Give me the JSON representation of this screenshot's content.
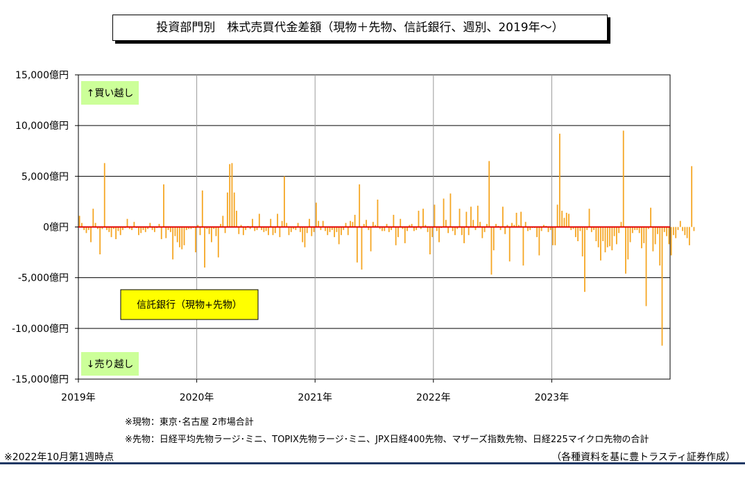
{
  "title": "投資部門別　株式売買代金差額（現物＋先物、信託銀行、週別、2019年～）",
  "notes": {
    "note1": "※現物：東京･名古屋 2市場合計",
    "note2": "※先物：日経平均先物ラージ･ミニ、TOPIX先物ラージ･ミニ、JPX日経400先物、マザーズ指数先物、日経225マイクロ先物の合計",
    "note3": "※2022年10月第1週時点",
    "source": "（各種資料を基に豊トラスティ証券作成）"
  },
  "chart_data": {
    "type": "bar",
    "title": "投資部門別　株式売買代金差額（現物＋先物、信託銀行、週別、2019年～）",
    "xlabel": "",
    "ylabel": "",
    "ylim": [
      -15000,
      15000
    ],
    "yticks": [
      15000,
      10000,
      5000,
      0,
      -5000,
      -10000,
      -15000
    ],
    "ytick_labels": [
      "15,000億円",
      "10,000億円",
      "5,000億円",
      "0億円",
      "-5,000億円",
      "-10,000億円",
      "-15,000億円"
    ],
    "x_tick_labels": [
      "2019年",
      "2020年",
      "2021年",
      "2022年",
      "2023年"
    ],
    "x_tick_positions_years": [
      2019,
      2020,
      2021,
      2022,
      2023
    ],
    "x_range_years": [
      2019,
      2024
    ],
    "grid": true,
    "bar_color": "#f5a623",
    "zero_line_color": "#e00000",
    "annotations": [
      {
        "text": "↑買い越し",
        "bg": "#ccff99",
        "anchor": "top-left"
      },
      {
        "text": "↓売り越し",
        "bg": "#ccff99",
        "anchor": "bottom-left"
      },
      {
        "text": "信託銀行（現物+先物）",
        "bg": "#ffff00",
        "anchor": "middle-left"
      }
    ],
    "series": [
      {
        "start_year": 2019.0,
        "weeks_per_year": 52,
        "values": [
          1100,
          400,
          -300,
          -600,
          -300,
          -1500,
          1800,
          400,
          -200,
          -2700,
          -200,
          6300,
          -300,
          -500,
          -1000,
          -200,
          -1200,
          -400,
          -800,
          -300,
          -100,
          800,
          -200,
          -300,
          500,
          -100,
          -800,
          -600,
          -300,
          -500,
          -200,
          400,
          -300,
          -500,
          -100,
          300,
          -1200,
          4200,
          -1100,
          -300,
          -500,
          -3200,
          -900,
          -1500,
          -2000,
          -2200,
          -1800,
          -300,
          -200,
          -200,
          -100,
          -2500,
          200,
          -800,
          3600,
          -4000,
          -200,
          -700,
          -1500,
          -200,
          -900,
          -3000,
          300,
          1100,
          -600,
          3400,
          6200,
          6300,
          3400,
          1600,
          -700,
          200,
          -800,
          -300,
          100,
          -200,
          800,
          -400,
          -300,
          1300,
          -300,
          -500,
          -400,
          -800,
          800,
          -800,
          -600,
          1300,
          -1000,
          600,
          5000,
          400,
          -800,
          -500,
          -200,
          -300,
          400,
          -500,
          -1500,
          -2000,
          -600,
          800,
          -900,
          -500,
          2400,
          600,
          -300,
          600,
          -400,
          -800,
          -500,
          -300,
          -1000,
          -500,
          -1700,
          -800,
          -300,
          400,
          -800,
          600,
          500,
          1200,
          -3500,
          4200,
          -4200,
          300,
          700,
          -300,
          -2400,
          500,
          200,
          2700,
          -200,
          -400,
          -400,
          300,
          -500,
          -300,
          1200,
          -1800,
          -1000,
          800,
          -200,
          -1600,
          -400,
          200,
          300,
          -400,
          -300,
          1600,
          -200,
          1800,
          200,
          -500,
          -2700,
          -1000,
          2200,
          -400,
          -1500,
          -100,
          2800,
          700,
          -600,
          3300,
          -400,
          -800,
          -200,
          1800,
          -800,
          -1600,
          1500,
          -800,
          2000,
          700,
          -300,
          2100,
          500,
          -1100,
          -500,
          300,
          6500,
          -4700,
          -2300,
          300,
          100,
          -300,
          2000,
          -700,
          200,
          -3400,
          400,
          200,
          1400,
          200,
          1500,
          -3800,
          500,
          -400,
          -300,
          -100,
          -100,
          -1000,
          -2800,
          -400,
          200,
          100,
          -500,
          -300,
          -1800,
          -1800,
          2200,
          9200,
          1600,
          900,
          1400,
          1300,
          -300,
          -200,
          -1000,
          -1400,
          -400,
          -2900,
          -6400,
          -300,
          1800,
          -500,
          -300,
          -1400,
          -2000,
          -3300,
          -1400,
          -2500,
          -2000,
          -1900,
          -2300,
          -900,
          -1700,
          -600,
          500,
          9500,
          -4600,
          -3200,
          -1500,
          -600,
          -300,
          -300,
          -600,
          -2100,
          -1600,
          -7800,
          -200,
          1900,
          -2400,
          -1700,
          -700,
          -3800,
          -11700,
          -500,
          -900,
          -1700,
          -2800,
          -800,
          -1100,
          -300,
          600,
          -400,
          -800,
          -1100,
          -1800,
          6000,
          -400
        ]
      }
    ]
  }
}
